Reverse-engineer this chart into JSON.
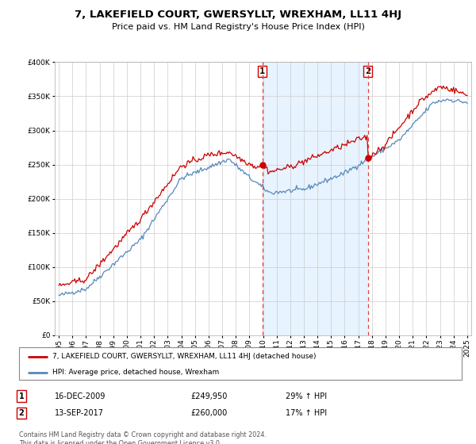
{
  "title": "7, LAKEFIELD COURT, GWERSYLLT, WREXHAM, LL11 4HJ",
  "subtitle": "Price paid vs. HM Land Registry's House Price Index (HPI)",
  "legend_label_red": "7, LAKEFIELD COURT, GWERSYLLT, WREXHAM, LL11 4HJ (detached house)",
  "legend_label_blue": "HPI: Average price, detached house, Wrexham",
  "transaction1_date": "16-DEC-2009",
  "transaction1_price": "£249,950",
  "transaction1_hpi": "29% ↑ HPI",
  "transaction2_date": "13-SEP-2017",
  "transaction2_price": "£260,000",
  "transaction2_hpi": "17% ↑ HPI",
  "footnote": "Contains HM Land Registry data © Crown copyright and database right 2024.\nThis data is licensed under the Open Government Licence v3.0.",
  "color_red": "#cc0000",
  "color_blue": "#5588bb",
  "vline_color": "#dd4444",
  "shade_color": "#ddeeff",
  "background_color": "#ffffff",
  "grid_color": "#cccccc",
  "chart_bg": "#ffffff",
  "ylim": [
    0,
    400000
  ],
  "yticks": [
    0,
    50000,
    100000,
    150000,
    200000,
    250000,
    300000,
    350000,
    400000
  ],
  "xlim_start": 1994.7,
  "xlim_end": 2025.3,
  "vline1_x": 2009.96,
  "vline2_x": 2017.71,
  "marker1_y": 249950,
  "marker2_y": 260000
}
